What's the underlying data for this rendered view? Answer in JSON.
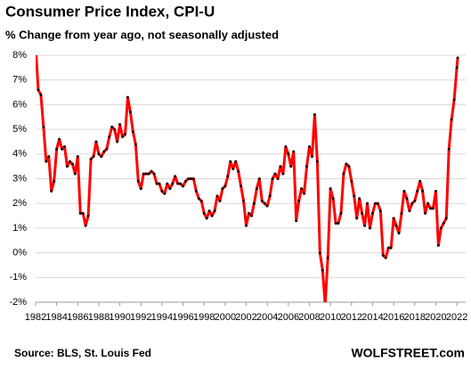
{
  "chart_data": {
    "type": "line",
    "title": "Consumer Price Index, CPI-U",
    "subtitle": "% Change from year ago, not seasonally adjusted",
    "source": "Source: BLS, St. Louis Fed",
    "brand": "WOLFSTREET.com",
    "x": [
      1982,
      1982.25,
      1982.5,
      1982.75,
      1983,
      1983.25,
      1983.5,
      1983.75,
      1984,
      1984.25,
      1984.5,
      1984.75,
      1985,
      1985.25,
      1985.5,
      1985.75,
      1986,
      1986.25,
      1986.5,
      1986.75,
      1987,
      1987.25,
      1987.5,
      1987.75,
      1988,
      1988.25,
      1988.5,
      1988.75,
      1989,
      1989.25,
      1989.5,
      1989.75,
      1990,
      1990.25,
      1990.5,
      1990.75,
      1991,
      1991.25,
      1991.5,
      1991.75,
      1992,
      1992.25,
      1992.5,
      1992.75,
      1993,
      1993.25,
      1993.5,
      1993.75,
      1994,
      1994.25,
      1994.5,
      1994.75,
      1995,
      1995.25,
      1995.5,
      1995.75,
      1996,
      1996.25,
      1996.5,
      1996.75,
      1997,
      1997.25,
      1997.5,
      1997.75,
      1998,
      1998.25,
      1998.5,
      1998.75,
      1999,
      1999.25,
      1999.5,
      1999.75,
      2000,
      2000.25,
      2000.5,
      2000.75,
      2001,
      2001.25,
      2001.5,
      2001.75,
      2002,
      2002.25,
      2002.5,
      2002.75,
      2003,
      2003.25,
      2003.5,
      2003.75,
      2004,
      2004.25,
      2004.5,
      2004.75,
      2005,
      2005.25,
      2005.5,
      2005.75,
      2006,
      2006.25,
      2006.5,
      2006.75,
      2007,
      2007.25,
      2007.5,
      2007.75,
      2008,
      2008.25,
      2008.5,
      2008.75,
      2009,
      2009.25,
      2009.5,
      2009.75,
      2010,
      2010.25,
      2010.5,
      2010.75,
      2011,
      2011.25,
      2011.5,
      2011.75,
      2012,
      2012.25,
      2012.5,
      2012.75,
      2013,
      2013.25,
      2013.5,
      2013.75,
      2014,
      2014.25,
      2014.5,
      2014.75,
      2015,
      2015.25,
      2015.5,
      2015.75,
      2016,
      2016.25,
      2016.5,
      2016.75,
      2017,
      2017.25,
      2017.5,
      2017.75,
      2018,
      2018.25,
      2018.5,
      2018.75,
      2019,
      2019.25,
      2019.5,
      2019.75,
      2020,
      2020.25,
      2020.5,
      2020.75,
      2021,
      2021.25,
      2021.5,
      2021.75,
      2022,
      2022.08
    ],
    "series": [
      {
        "name": "CPI-U",
        "color": "#ff0000",
        "values": [
          8.4,
          6.6,
          6.4,
          5.1,
          3.7,
          3.9,
          2.5,
          2.9,
          4.2,
          4.6,
          4.2,
          4.3,
          3.5,
          3.7,
          3.6,
          3.2,
          3.9,
          1.6,
          1.6,
          1.1,
          1.5,
          3.8,
          3.9,
          4.5,
          4.0,
          3.9,
          4.1,
          4.2,
          4.7,
          5.1,
          5.0,
          4.5,
          5.2,
          4.7,
          4.8,
          6.3,
          5.7,
          4.9,
          4.4,
          2.9,
          2.6,
          3.2,
          3.2,
          3.2,
          3.3,
          3.2,
          2.8,
          2.8,
          2.5,
          2.4,
          2.8,
          2.6,
          2.8,
          3.1,
          2.8,
          2.8,
          2.7,
          2.9,
          3.0,
          3.0,
          3.0,
          2.5,
          2.2,
          2.1,
          1.6,
          1.4,
          1.7,
          1.5,
          1.7,
          2.3,
          2.1,
          2.6,
          2.7,
          3.1,
          3.7,
          3.4,
          3.7,
          3.3,
          2.7,
          2.1,
          1.1,
          1.6,
          1.5,
          2.0,
          2.6,
          3.0,
          2.1,
          2.0,
          1.9,
          2.3,
          3.0,
          3.2,
          3.0,
          3.5,
          3.2,
          4.3,
          4.0,
          3.5,
          4.1,
          1.3,
          2.1,
          2.6,
          2.4,
          3.5,
          4.3,
          3.9,
          5.6,
          3.7,
          0.0,
          -0.7,
          -2.1,
          -0.2,
          2.6,
          2.2,
          1.2,
          1.2,
          1.6,
          3.2,
          3.6,
          3.5,
          2.9,
          2.3,
          1.4,
          2.2,
          1.6,
          1.1,
          2.0,
          1.0,
          1.6,
          2.0,
          2.0,
          1.7,
          -0.1,
          -0.2,
          0.2,
          0.2,
          1.4,
          1.1,
          0.8,
          1.6,
          2.5,
          2.2,
          1.7,
          2.0,
          2.1,
          2.5,
          2.9,
          2.5,
          1.6,
          2.0,
          1.8,
          1.8,
          2.5,
          0.3,
          1.0,
          1.2,
          1.4,
          4.2,
          5.4,
          6.2,
          7.5,
          7.9
        ]
      }
    ],
    "xlim": [
      1982,
      2022.5
    ],
    "xticks": [
      1982,
      1984,
      1986,
      1988,
      1990,
      1992,
      1994,
      1996,
      1998,
      2000,
      2002,
      2004,
      2006,
      2008,
      2010,
      2012,
      2014,
      2016,
      2018,
      2020,
      2022
    ],
    "ylim": [
      -2,
      8
    ],
    "yticks": [
      {
        "value": -2,
        "label": "-2%"
      },
      {
        "value": -1,
        "label": "-1%"
      },
      {
        "value": 0,
        "label": "0%"
      },
      {
        "value": 1,
        "label": "1%"
      },
      {
        "value": 2,
        "label": "2%"
      },
      {
        "value": 3,
        "label": "3%"
      },
      {
        "value": 4,
        "label": "4%"
      },
      {
        "value": 5,
        "label": "5%"
      },
      {
        "value": 6,
        "label": "6%"
      },
      {
        "value": 7,
        "label": "7%"
      },
      {
        "value": 8,
        "label": "8%"
      }
    ],
    "grid": true
  }
}
